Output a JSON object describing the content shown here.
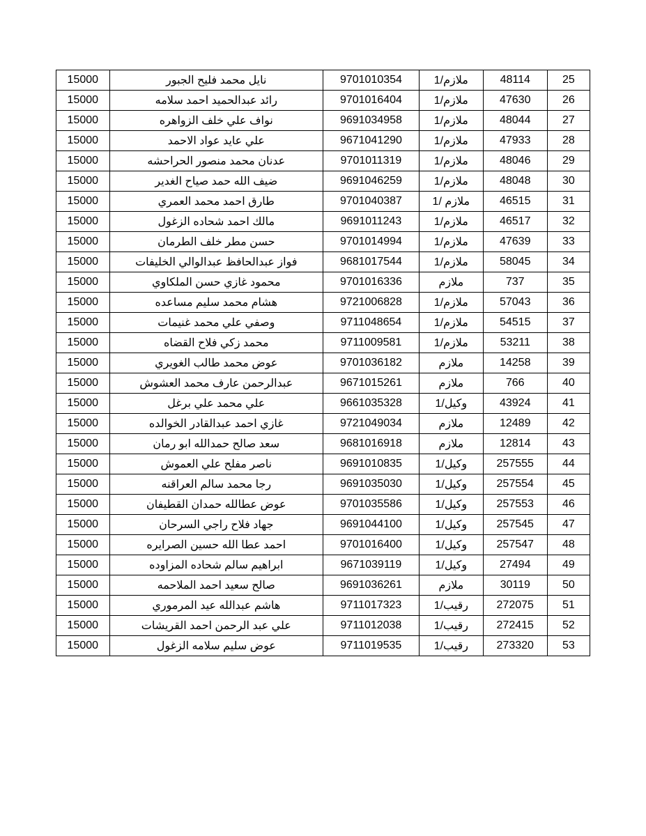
{
  "table": {
    "columns": [
      "amount",
      "name",
      "id",
      "rank",
      "num",
      "seq"
    ],
    "column_widths": [
      "10%",
      "40%",
      "18%",
      "12%",
      "12%",
      "8%"
    ],
    "border_color": "#000000",
    "background_color": "#ffffff",
    "font_size": 16,
    "cell_padding": "4px 6px",
    "text_align": "center",
    "rows": [
      {
        "amount": "15000",
        "name": "نايل محمد فليح الجبور",
        "id": "9701010354",
        "rank": "ملازم/1",
        "num": "48114",
        "seq": "25"
      },
      {
        "amount": "15000",
        "name": "رائد عبدالحميد احمد سلامه",
        "id": "9701016404",
        "rank": "ملازم/1",
        "num": "47630",
        "seq": "26"
      },
      {
        "amount": "15000",
        "name": "نواف علي خلف الزواهره",
        "id": "9691034958",
        "rank": "ملازم/1",
        "num": "48044",
        "seq": "27"
      },
      {
        "amount": "15000",
        "name": "علي عايد عواد الاحمد",
        "id": "9671041290",
        "rank": "ملازم/1",
        "num": "47933",
        "seq": "28"
      },
      {
        "amount": "15000",
        "name": "عدنان محمد منصور الحراحشه",
        "id": "9701011319",
        "rank": "ملازم/1",
        "num": "48046",
        "seq": "29"
      },
      {
        "amount": "15000",
        "name": "ضيف الله حمد صياح الغدير",
        "id": "9691046259",
        "rank": "ملازم/1",
        "num": "48048",
        "seq": "30"
      },
      {
        "amount": "15000",
        "name": "طارق احمد محمد العمري",
        "id": "9701040387",
        "rank": "ملازم /1",
        "num": "46515",
        "seq": "31"
      },
      {
        "amount": "15000",
        "name": "مالك احمد شحاده الزغول",
        "id": "9691011243",
        "rank": "ملازم/1",
        "num": "46517",
        "seq": "32"
      },
      {
        "amount": "15000",
        "name": "حسن مطر خلف الطرمان",
        "id": "9701014994",
        "rank": "ملازم/1",
        "num": "47639",
        "seq": "33"
      },
      {
        "amount": "15000",
        "name": "فواز عبدالحافظ عبدالوالي الخليفات",
        "id": "9681017544",
        "rank": "ملازم/1",
        "num": "58045",
        "seq": "34"
      },
      {
        "amount": "15000",
        "name": "محمود غازي حسن الملكاوي",
        "id": "9701016336",
        "rank": "ملازم",
        "num": "737",
        "seq": "35"
      },
      {
        "amount": "15000",
        "name": "هشام محمد سليم مساعده",
        "id": "9721006828",
        "rank": "ملازم/1",
        "num": "57043",
        "seq": "36"
      },
      {
        "amount": "15000",
        "name": "وصفي علي محمد غنيمات",
        "id": "9711048654",
        "rank": "ملازم/1",
        "num": "54515",
        "seq": "37"
      },
      {
        "amount": "15000",
        "name": "محمد زكي فلاح القضاه",
        "id": "9711009581",
        "rank": "ملازم/1",
        "num": "53211",
        "seq": "38"
      },
      {
        "amount": "15000",
        "name": "عوض محمد طالب الغويري",
        "id": "9701036182",
        "rank": "ملازم",
        "num": "14258",
        "seq": "39"
      },
      {
        "amount": "15000",
        "name": "عبدالرحمن عارف محمد العشوش",
        "id": "9671015261",
        "rank": "ملازم",
        "num": "766",
        "seq": "40"
      },
      {
        "amount": "15000",
        "name": "علي محمد علي برغل",
        "id": "9661035328",
        "rank": "وكيل/1",
        "num": "43924",
        "seq": "41"
      },
      {
        "amount": "15000",
        "name": "غازي احمد عبدالقادر الخوالده",
        "id": "9721049034",
        "rank": "ملازم",
        "num": "12489",
        "seq": "42"
      },
      {
        "amount": "15000",
        "name": "سعد صالح حمدالله ابو رمان",
        "id": "9681016918",
        "rank": "ملازم",
        "num": "12814",
        "seq": "43"
      },
      {
        "amount": "15000",
        "name": "ناصر مفلح علي العموش",
        "id": "9691010835",
        "rank": "وكيل/1",
        "num": "257555",
        "seq": "44"
      },
      {
        "amount": "15000",
        "name": "رجا محمد سالم العراقنه",
        "id": "9691035030",
        "rank": "وكيل/1",
        "num": "257554",
        "seq": "45"
      },
      {
        "amount": "15000",
        "name": "عوض عطالله حمدان القطيفان",
        "id": "9701035586",
        "rank": "وكيل/1",
        "num": "257553",
        "seq": "46"
      },
      {
        "amount": "15000",
        "name": "جهاد فلاح راجي السرحان",
        "id": "9691044100",
        "rank": "وكيل/1",
        "num": "257545",
        "seq": "47"
      },
      {
        "amount": "15000",
        "name": "احمد عطا الله حسين الصرايره",
        "id": "9701016400",
        "rank": "وكيل/1",
        "num": "257547",
        "seq": "48"
      },
      {
        "amount": "15000",
        "name": "ابراهيم سالم شحاده المزاوده",
        "id": "9671039119",
        "rank": "وكيل/1",
        "num": "27494",
        "seq": "49"
      },
      {
        "amount": "15000",
        "name": "صالح سعيد احمد الملاحمه",
        "id": "9691036261",
        "rank": "ملازم",
        "num": "30119",
        "seq": "50"
      },
      {
        "amount": "15000",
        "name": "هاشم عبدالله عيد المرموري",
        "id": "9711017323",
        "rank": "رقيب/1",
        "num": "272075",
        "seq": "51"
      },
      {
        "amount": "15000",
        "name": "علي عبد الرحمن احمد القريشات",
        "id": "9711012038",
        "rank": "رقيب/1",
        "num": "272415",
        "seq": "52"
      },
      {
        "amount": "15000",
        "name": "عوض سليم سلامه الزغول",
        "id": "9711019535",
        "rank": "رقيب/1",
        "num": "273320",
        "seq": "53"
      }
    ]
  }
}
